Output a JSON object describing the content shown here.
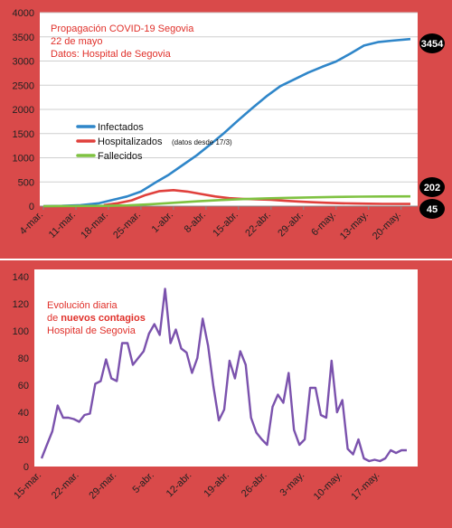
{
  "chart_data": [
    {
      "type": "line",
      "title_lines": [
        "Propagación COVID-19 Segovia",
        "22 de mayo",
        "Datos: Hospital de Segovia"
      ],
      "ylim": [
        0,
        4000
      ],
      "y_ticks": [
        "0",
        "500",
        "1000",
        "1500",
        "2000",
        "2500",
        "3000",
        "3500",
        "4000"
      ],
      "x_ticks": [
        "4-mar.",
        "11-mar.",
        "18-mar.",
        "25-mar.",
        "1-abr.",
        "8-abr.",
        "15-abr.",
        "22-abr.",
        "29-abr.",
        "6-may.",
        "13-may.",
        "20-may."
      ],
      "x_start": "2020-03-04",
      "grid": true,
      "legend": [
        {
          "label": "Infectados",
          "note": "",
          "color": "#2f86c9"
        },
        {
          "label": "Hospitalizados",
          "note": "(datos desde 17/3)",
          "color": "#e0403c"
        },
        {
          "label": "Fallecidos",
          "note": "",
          "color": "#7fc241"
        }
      ],
      "end_labels": [
        "3454",
        "202",
        "45"
      ],
      "series": [
        {
          "name": "Infectados",
          "color": "#2f86c9",
          "x": [
            "2020-03-04",
            "2020-03-08",
            "2020-03-12",
            "2020-03-16",
            "2020-03-19",
            "2020-03-22",
            "2020-03-25",
            "2020-03-28",
            "2020-03-31",
            "2020-04-03",
            "2020-04-06",
            "2020-04-09",
            "2020-04-12",
            "2020-04-15",
            "2020-04-18",
            "2020-04-21",
            "2020-04-24",
            "2020-04-27",
            "2020-04-30",
            "2020-05-03",
            "2020-05-06",
            "2020-05-09",
            "2020-05-12",
            "2020-05-15",
            "2020-05-18",
            "2020-05-22"
          ],
          "y": [
            0,
            5,
            20,
            60,
            130,
            200,
            300,
            480,
            650,
            850,
            1050,
            1280,
            1520,
            1780,
            2030,
            2270,
            2480,
            2620,
            2760,
            2880,
            2990,
            3150,
            3320,
            3390,
            3420,
            3454
          ]
        },
        {
          "name": "Hospitalizados",
          "color": "#e0403c",
          "x": [
            "2020-03-17",
            "2020-03-20",
            "2020-03-23",
            "2020-03-26",
            "2020-03-29",
            "2020-04-01",
            "2020-04-04",
            "2020-04-07",
            "2020-04-10",
            "2020-04-13",
            "2020-04-16",
            "2020-04-19",
            "2020-04-22",
            "2020-04-25",
            "2020-04-28",
            "2020-05-01",
            "2020-05-04",
            "2020-05-07",
            "2020-05-10",
            "2020-05-13",
            "2020-05-16",
            "2020-05-22"
          ],
          "y": [
            20,
            60,
            120,
            230,
            310,
            330,
            300,
            250,
            200,
            165,
            150,
            140,
            130,
            110,
            95,
            80,
            70,
            60,
            55,
            50,
            47,
            45
          ]
        },
        {
          "name": "Fallecidos",
          "color": "#7fc241",
          "x": [
            "2020-03-04",
            "2020-03-17",
            "2020-03-22",
            "2020-03-27",
            "2020-04-01",
            "2020-04-06",
            "2020-04-11",
            "2020-04-16",
            "2020-04-21",
            "2020-04-26",
            "2020-05-01",
            "2020-05-06",
            "2020-05-11",
            "2020-05-16",
            "2020-05-22"
          ],
          "y": [
            0,
            5,
            15,
            40,
            70,
            100,
            125,
            145,
            160,
            172,
            182,
            190,
            196,
            200,
            202
          ]
        }
      ]
    },
    {
      "type": "line",
      "title_lines": [
        "Evolución diaria",
        "de nuevos contagios",
        "Hospital de Segovia"
      ],
      "title_line2_prefix": "de ",
      "title_line2_bold": "nuevos contagios",
      "ylim": [
        0,
        140
      ],
      "y_ticks": [
        "0",
        "20",
        "40",
        "60",
        "80",
        "100",
        "120",
        "140"
      ],
      "x_ticks": [
        "15-mar.",
        "22-mar.",
        "29-mar.",
        "5-abr.",
        "12-abr.",
        "19-abr.",
        "26-abr.",
        "3-may.",
        "10-may.",
        "17-may."
      ],
      "x_start": "2020-03-15",
      "grid": false,
      "series": [
        {
          "name": "Nuevos contagios",
          "color": "#7b52ad",
          "x": [
            "2020-03-15",
            "2020-03-16",
            "2020-03-17",
            "2020-03-18",
            "2020-03-19",
            "2020-03-20",
            "2020-03-21",
            "2020-03-22",
            "2020-03-23",
            "2020-03-24",
            "2020-03-25",
            "2020-03-26",
            "2020-03-27",
            "2020-03-28",
            "2020-03-29",
            "2020-03-30",
            "2020-03-31",
            "2020-04-01",
            "2020-04-02",
            "2020-04-03",
            "2020-04-04",
            "2020-04-05",
            "2020-04-06",
            "2020-04-07",
            "2020-04-08",
            "2020-04-09",
            "2020-04-10",
            "2020-04-11",
            "2020-04-12",
            "2020-04-13",
            "2020-04-14",
            "2020-04-15",
            "2020-04-16",
            "2020-04-17",
            "2020-04-18",
            "2020-04-19",
            "2020-04-20",
            "2020-04-21",
            "2020-04-22",
            "2020-04-23",
            "2020-04-24",
            "2020-04-25",
            "2020-04-26",
            "2020-04-27",
            "2020-04-28",
            "2020-04-29",
            "2020-04-30",
            "2020-05-01",
            "2020-05-02",
            "2020-05-03",
            "2020-05-04",
            "2020-05-05",
            "2020-05-06",
            "2020-05-07",
            "2020-05-08",
            "2020-05-09",
            "2020-05-10",
            "2020-05-11",
            "2020-05-12",
            "2020-05-13",
            "2020-05-14",
            "2020-05-15",
            "2020-05-16",
            "2020-05-17",
            "2020-05-18",
            "2020-05-19",
            "2020-05-20",
            "2020-05-21",
            "2020-05-22"
          ],
          "y": [
            6,
            16,
            26,
            45,
            36,
            36,
            35,
            33,
            38,
            39,
            61,
            63,
            79,
            65,
            63,
            91,
            91,
            75,
            80,
            85,
            98,
            105,
            97,
            131,
            91,
            101,
            87,
            84,
            69,
            80,
            109,
            89,
            59,
            34,
            42,
            78,
            65,
            85,
            75,
            36,
            25,
            20,
            16,
            44,
            53,
            47,
            69,
            27,
            16,
            20,
            58,
            58,
            38,
            36,
            78,
            40,
            49,
            13,
            9,
            20,
            6,
            4,
            5,
            4,
            6,
            12,
            10,
            12,
            12
          ]
        }
      ]
    }
  ]
}
